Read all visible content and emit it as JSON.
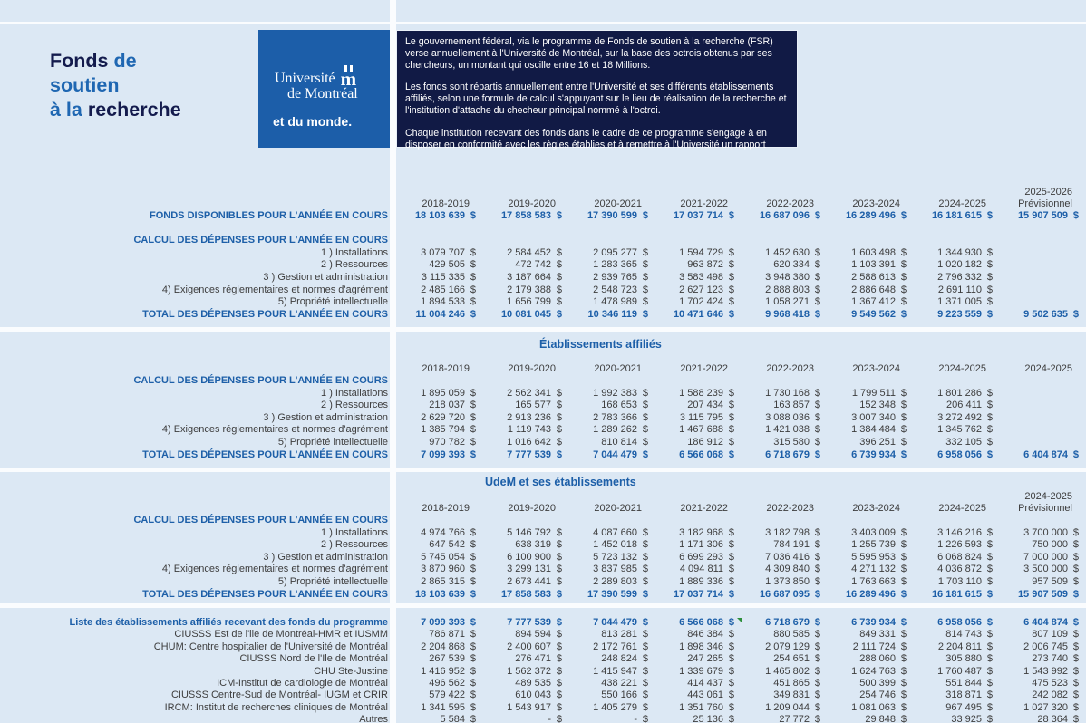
{
  "title": {
    "l1a": "Fonds",
    "l1b": "de",
    "l2": "soutien",
    "l3a": "à la",
    "l3b": "recherche"
  },
  "logo": {
    "line1": "Université",
    "line2": "de Montréal",
    "tagline": "et du monde."
  },
  "info_box": {
    "p1": "Le gouvernement fédéral, via le programme de Fonds de soutien à la recherche (FSR) verse annuellement à l'Université de Montréal, sur la base des octrois obtenus par ses chercheurs, un montant qui oscille entre 16 et 18 Millions.",
    "p2": "Les fonds sont répartis annuellement entre l'Université et ses différents établissements affiliés, selon une formule de calcul s'appuyant sur le lieu de réalisation de la recherche et l'institution d'attache du checheur principal nommé à l'octroi.",
    "p3": "Chaque institution recevant des fonds dans le cadre de ce programme s'engage à en disposer en conformité avec les règles établies et à remettre à l'Université un rapport"
  },
  "colors": {
    "accent_blue": "#1d5fa8",
    "navy": "#111a45",
    "logo_blue": "#1c5ea9",
    "background": "#dce8f4",
    "flag_green": "#2e8f3c"
  },
  "sections": [
    {
      "years": [
        "2018-2019",
        "2019-2020",
        "2020-2021",
        "2021-2022",
        "2022-2023",
        "2023-2024",
        "2024-2025",
        "2025-2026\nPrévisionnel"
      ],
      "rows": [
        {
          "label": "FONDS DISPONIBLES POUR L'ANNÉE EN COURS",
          "style": "blue",
          "values": [
            "18 103 639",
            "17 858 583",
            "17 390 599",
            "17 037 714",
            "16 687 096",
            "16 289 496",
            "16 181 615",
            "15 907 509"
          ]
        },
        {
          "style": "spacer"
        },
        {
          "label": "CALCUL DES DÉPENSES POUR L'ANNÉE EN COURS",
          "style": "hdr"
        },
        {
          "label": "1 )  Installations",
          "style": "plain",
          "values": [
            "3 079 707",
            "2 584 452",
            "2 095 277",
            "1 594 729",
            "1 452 630",
            "1 603 498",
            "1 344 930",
            ""
          ]
        },
        {
          "label": "2 )  Ressources",
          "style": "plain",
          "values": [
            "429 505",
            "472 742",
            "1 283 365",
            "963 872",
            "620 334",
            "1 103 391",
            "1 020 182",
            ""
          ]
        },
        {
          "label": "3 ) Gestion et administration",
          "style": "plain",
          "values": [
            "3 115 335",
            "3 187 664",
            "2 939 765",
            "3 583 498",
            "3 948 380",
            "2 588 613",
            "2 796 332",
            ""
          ]
        },
        {
          "label": "4) Exigences réglementaires et normes d'agrément",
          "style": "plain",
          "values": [
            "2 485 166",
            "2 179 388",
            "2 548 723",
            "2 627 123",
            "2 888 803",
            "2 886 648",
            "2 691 110",
            ""
          ]
        },
        {
          "label": "5) Propriété intellectuelle",
          "style": "plain",
          "values": [
            "1 894 533",
            "1 656 799",
            "1 478 989",
            "1 702 424",
            "1 058 271",
            "1 367 412",
            "1 371 005",
            ""
          ]
        },
        {
          "label": "TOTAL DES DÉPENSES POUR L'ANNÉE EN COURS",
          "style": "blue",
          "values": [
            "11 004 246",
            "10 081 045",
            "10 346 119",
            "10 471 646",
            "9 968 418",
            "9 549 562",
            "9 223 559",
            "9 502 635"
          ]
        }
      ]
    },
    {
      "title": "Établissements affiliés",
      "years": [
        "2018-2019",
        "2019-2020",
        "2020-2021",
        "2021-2022",
        "2022-2023",
        "2023-2024",
        "2024-2025",
        "2024-2025"
      ],
      "rows": [
        {
          "label": "CALCUL DES DÉPENSES POUR L'ANNÉE EN COURS",
          "style": "hdr"
        },
        {
          "label": "1 )  Installations",
          "style": "plain",
          "values": [
            "1 895 059",
            "2 562 341",
            "1 992 383",
            "1 588 239",
            "1 730 168",
            "1 799 511",
            "1 801 286",
            ""
          ]
        },
        {
          "label": "2 )  Ressources",
          "style": "plain",
          "values": [
            "218 037",
            "165 577",
            "168 653",
            "207 434",
            "163 857",
            "152 348",
            "206 411",
            ""
          ]
        },
        {
          "label": "3 ) Gestion et administration",
          "style": "plain",
          "values": [
            "2 629 720",
            "2 913 236",
            "2 783 366",
            "3 115 795",
            "3 088 036",
            "3 007 340",
            "3 272 492",
            ""
          ]
        },
        {
          "label": "4) Exigences réglementaires et normes d'agrément",
          "style": "plain",
          "values": [
            "1 385 794",
            "1 119 743",
            "1 289 262",
            "1 467 688",
            "1 421 038",
            "1 384 484",
            "1 345 762",
            ""
          ]
        },
        {
          "label": "5) Propriété intellectuelle",
          "style": "plain",
          "values": [
            "970 782",
            "1 016 642",
            "810 814",
            "186 912",
            "315 580",
            "396 251",
            "332 105",
            ""
          ]
        },
        {
          "label": "TOTAL DES DÉPENSES POUR L'ANNÉE EN COURS",
          "style": "blue",
          "values": [
            "7 099 393",
            "7 777 539",
            "7 044 479",
            "6 566 068",
            "6 718 679",
            "6 739 934",
            "6 958 056",
            "6 404 874"
          ]
        }
      ]
    },
    {
      "title": "UdeM et ses établissements",
      "years": [
        "2018-2019",
        "2019-2020",
        "2020-2021",
        "2021-2022",
        "2022-2023",
        "2023-2024",
        "2024-2025",
        "2024-2025\nPrévisionnel"
      ],
      "rows": [
        {
          "label": "CALCUL DES DÉPENSES POUR L'ANNÉE EN COURS",
          "style": "hdr"
        },
        {
          "label": "1 )  Installations",
          "style": "plain",
          "values": [
            "4 974 766",
            "5 146 792",
            "4 087 660",
            "3 182 968",
            "3 182 798",
            "3 403 009",
            "3 146 216",
            "3 700 000"
          ]
        },
        {
          "label": "2 )  Ressources",
          "style": "plain",
          "values": [
            "647 542",
            "638 319",
            "1 452 018",
            "1 171 306",
            "784 191",
            "1 255 739",
            "1 226 593",
            "750 000"
          ]
        },
        {
          "label": "3 ) Gestion et administration",
          "style": "plain",
          "values": [
            "5 745 054",
            "6 100 900",
            "5 723 132",
            "6 699 293",
            "7 036 416",
            "5 595 953",
            "6 068 824",
            "7 000 000"
          ]
        },
        {
          "label": "4) Exigences réglementaires et normes d'agrément",
          "style": "plain",
          "values": [
            "3 870 960",
            "3 299 131",
            "3 837 985",
            "4 094 811",
            "4 309 840",
            "4 271 132",
            "4 036 872",
            "3 500 000"
          ]
        },
        {
          "label": "5) Propriété intellectuelle",
          "style": "plain",
          "values": [
            "2 865 315",
            "2 673 441",
            "2 289 803",
            "1 889 336",
            "1 373 850",
            "1 763 663",
            "1 703 110",
            "957 509"
          ]
        },
        {
          "label": "TOTAL DES DÉPENSES POUR L'ANNÉE EN COURS",
          "style": "blue",
          "values": [
            "18 103 639",
            "17 858 583",
            "17 390 599",
            "17 037 714",
            "16 687 095",
            "16 289 496",
            "16 181 615",
            "15 907 509"
          ]
        }
      ]
    },
    {
      "rows": [
        {
          "label": "Liste des établissements affiliés recevant des fonds du programme",
          "style": "blue",
          "flag_col": 3,
          "values": [
            "7 099 393",
            "7 777 539",
            "7 044 479",
            "6 566 068",
            "6 718 679",
            "6 739 934",
            "6 958 056",
            "6 404 874"
          ]
        },
        {
          "label": "CIUSSS Est de l'ile de Montréal-HMR et IUSMM",
          "style": "plain",
          "values": [
            "786 871",
            "894 594",
            "813 281",
            "846 384",
            "880 585",
            "849 331",
            "814 743",
            "807 109"
          ]
        },
        {
          "label": "CHUM: Centre hospitalier de l'Université de Montréal",
          "style": "plain",
          "values": [
            "2 204 868",
            "2 400 607",
            "2 172 761",
            "1 898 346",
            "2 079 129",
            "2 111 724",
            "2 204 811",
            "2 006 745"
          ]
        },
        {
          "label": "CIUSSS Nord de l'Ile de Montréal",
          "style": "plain",
          "values": [
            "267 539",
            "276 471",
            "248 824",
            "247 265",
            "254 651",
            "288 060",
            "305 880",
            "273 740"
          ]
        },
        {
          "label": "CHU Ste-Justine",
          "style": "plain",
          "values": [
            "1 416 952",
            "1 562 372",
            "1 415 947",
            "1 339 679",
            "1 465 802",
            "1 624 763",
            "1 760 487",
            "1 543 992"
          ]
        },
        {
          "label": "ICM-Institut de cardiologie de Montréal",
          "style": "plain",
          "values": [
            "496 562",
            "489 535",
            "438 221",
            "414 437",
            "451 865",
            "500 399",
            "551 844",
            "475 523"
          ]
        },
        {
          "label": "CIUSSS Centre-Sud de Montréal- IUGM et CRIR",
          "style": "plain",
          "values": [
            "579 422",
            "610 043",
            "550 166",
            "443 061",
            "349 831",
            "254 746",
            "318 871",
            "242 082"
          ]
        },
        {
          "label": "IRCM: Institut de recherches cliniques de Montréal",
          "style": "plain",
          "values": [
            "1 341 595",
            "1 543 917",
            "1 405 279",
            "1 351 760",
            "1 209 044",
            "1 081 063",
            "967 495",
            "1 027 320"
          ]
        },
        {
          "label": "Autres",
          "style": "plain",
          "values": [
            "5 584",
            "-",
            "-",
            "25 136",
            "27 772",
            "29 848",
            "33 925",
            "28 364"
          ]
        }
      ]
    }
  ]
}
